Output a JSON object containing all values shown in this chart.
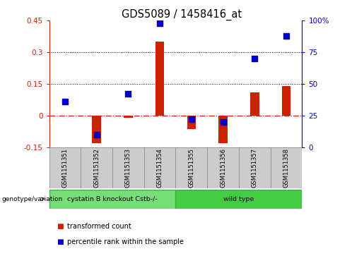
{
  "title": "GDS5089 / 1458416_at",
  "samples": [
    "GSM1151351",
    "GSM1151352",
    "GSM1151353",
    "GSM1151354",
    "GSM1151355",
    "GSM1151356",
    "GSM1151357",
    "GSM1151358"
  ],
  "transformed_count": [
    0.0,
    -0.13,
    -0.01,
    0.35,
    -0.065,
    -0.13,
    0.11,
    0.14
  ],
  "percentile_rank": [
    36,
    10,
    42,
    98,
    22,
    20,
    70,
    88
  ],
  "ylim_left": [
    -0.15,
    0.45
  ],
  "yticks_left": [
    -0.15,
    0.0,
    0.15,
    0.3,
    0.45
  ],
  "ytick_labels_left": [
    "-0.15",
    "0",
    "0.15",
    "0.3",
    "0.45"
  ],
  "ytick_labels_right": [
    "0",
    "25",
    "50",
    "75",
    "100%"
  ],
  "hlines": [
    0.15,
    0.3
  ],
  "bar_color": "#cc2200",
  "dot_color": "#0000cc",
  "zero_line_color": "#cc2200",
  "group1_label": "cystatin B knockout Cstb-/-",
  "group2_label": "wild type",
  "group1_color": "#77dd77",
  "group2_color": "#44cc44",
  "group_row_label": "genotype/variation",
  "legend_bar_label": "transformed count",
  "legend_dot_label": "percentile rank within the sample",
  "bar_width": 0.28,
  "dot_size": 28,
  "tick_area_bg": "#cccccc",
  "title_fontsize": 10.5
}
